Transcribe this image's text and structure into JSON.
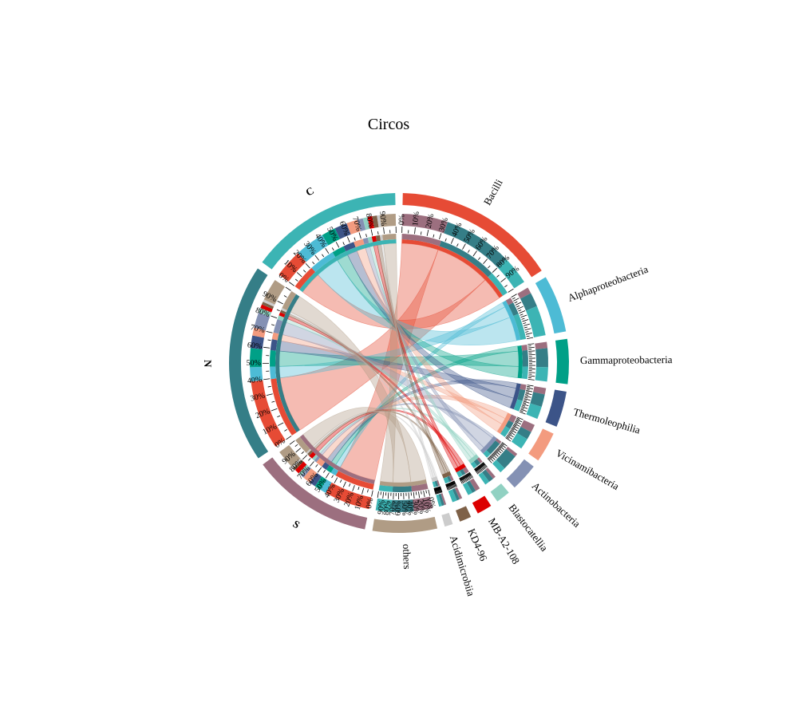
{
  "chart_data": {
    "type": "chord",
    "title": "Circos",
    "colors": {
      "Bacilli": "#e64b35",
      "Alphaproteobacteria": "#4dbbd5",
      "Gammaproteobacteria": "#00a087",
      "Thermoleophilia": "#3c5488",
      "Vicinamibacteria": "#f39b7f",
      "Actinobacteria": "#8491b4",
      "Blastocatellia": "#91d1c2",
      "MB-A2-108": "#dc0000",
      "KD4-96": "#7e6148",
      "Acidimicrobiia": "#cccccc",
      "others": "#b09c85",
      "S": "#9c6f7f",
      "N": "#357e87",
      "C": "#3cb4b4"
    },
    "groups": [
      "S",
      "N",
      "C"
    ],
    "taxa": [
      "Bacilli",
      "Alphaproteobacteria",
      "Gammaproteobacteria",
      "Thermoleophilia",
      "Vicinamibacteria",
      "Actinobacteria",
      "Blastocatellia",
      "MB-A2-108",
      "KD4-96",
      "Acidimicrobiia",
      "others"
    ],
    "bold_labels": [
      "S",
      "N",
      "C"
    ],
    "tick_labels": [
      "0%",
      "10%",
      "20%",
      "30%",
      "40%",
      "50%",
      "60%",
      "70%",
      "80%",
      "90%"
    ],
    "flows": [
      {
        "taxon": "Bacilli",
        "S": 14.5,
        "N": 22.0,
        "C": 9.0
      },
      {
        "taxon": "Alphaproteobacteria",
        "S": 2.0,
        "N": 4.5,
        "C": 9.5
      },
      {
        "taxon": "Gammaproteobacteria",
        "S": 2.0,
        "N": 6.0,
        "C": 4.5
      },
      {
        "taxon": "Thermoleophilia",
        "S": 2.0,
        "N": 4.0,
        "C": 4.0
      },
      {
        "taxon": "Vicinamibacteria",
        "S": 2.5,
        "N": 2.5,
        "C": 3.5
      },
      {
        "taxon": "Actinobacteria",
        "S": 1.0,
        "N": 5.0,
        "C": 1.8
      },
      {
        "taxon": "Blastocatellia",
        "S": 1.0,
        "N": 1.5,
        "C": 1.5
      },
      {
        "taxon": "MB-A2-108",
        "S": 1.5,
        "N": 1.2,
        "C": 1.5
      },
      {
        "taxon": "KD4-96",
        "S": 0.9,
        "N": 0.9,
        "C": 1.5
      },
      {
        "taxon": "Acidimicrobiia",
        "S": 0.6,
        "N": 0.8,
        "C": 0.9
      },
      {
        "taxon": "others",
        "S": 6.0,
        "N": 7.0,
        "C": 5.0
      }
    ]
  }
}
